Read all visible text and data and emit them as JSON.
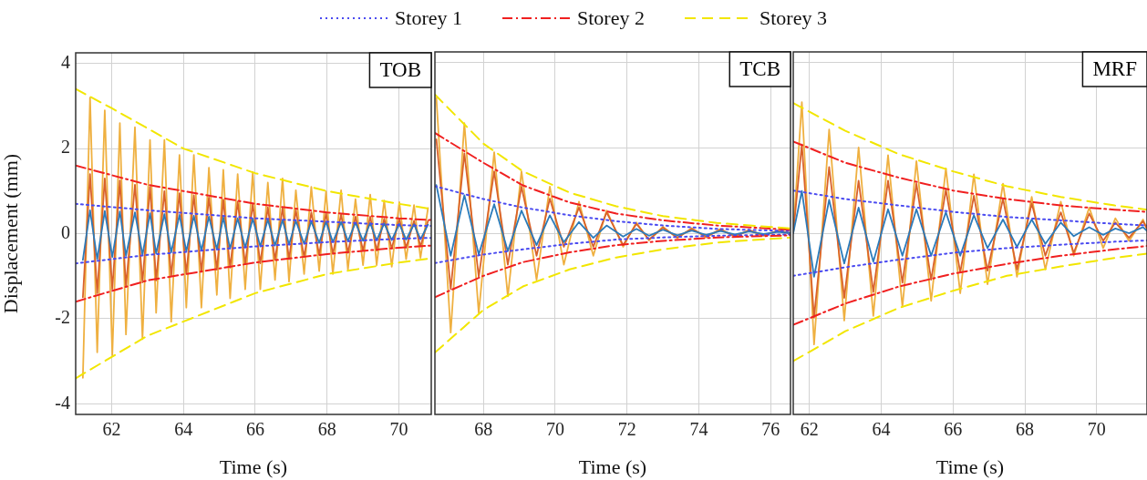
{
  "chart_data": [
    {
      "type": "line",
      "title": "TOB",
      "xlabel": "Time (s)",
      "ylabel": "Displacement (mm)",
      "xlim": [
        61,
        70.9
      ],
      "xticks": [
        62,
        64,
        66,
        68,
        70
      ],
      "ylim": [
        -4.25,
        4.25
      ],
      "yticks": [
        -4,
        -2,
        0,
        2,
        4
      ],
      "grid": true,
      "legend": "top",
      "marker": "none",
      "x": [
        61.2,
        61.4,
        61.6,
        61.81,
        62.02,
        62.23,
        62.4,
        62.65,
        62.86,
        63.07,
        63.24,
        63.47,
        63.66,
        63.89,
        64.08,
        64.29,
        64.5,
        64.71,
        64.93,
        65.11,
        65.3,
        65.51,
        65.72,
        65.93,
        66.14,
        66.35,
        66.55,
        66.76,
        66.94,
        67.13,
        67.36,
        67.56,
        67.78,
        67.97,
        68.16,
        68.39,
        68.58,
        68.79,
        69.0,
        69.2,
        69.38,
        69.59,
        69.8,
        70.01,
        70.2,
        70.42,
        70.6,
        70.81
      ],
      "series": [
        {
          "color": "#efb040",
          "values": [
            -3.39,
            3.2,
            -2.79,
            2.9,
            -2.86,
            2.6,
            -2.37,
            2.5,
            -2.48,
            2.2,
            -1.86,
            2.2,
            -2.07,
            1.85,
            -1.74,
            1.85,
            -1.74,
            1.55,
            -1.44,
            1.5,
            -1.52,
            1.4,
            -1.31,
            1.45,
            -1.31,
            1.2,
            -1.09,
            1.3,
            -1.13,
            1.02,
            -0.95,
            1.1,
            -0.88,
            0.99,
            -0.95,
            1.02,
            -0.85,
            0.81,
            -0.74,
            0.92,
            -0.74,
            0.78,
            -0.78,
            0.74,
            -0.6,
            0.67,
            -0.57,
            0.6
          ]
        },
        {
          "color": "#d9622b",
          "values": [
            -1.5,
            1.4,
            -1.4,
            1.3,
            -1.3,
            1.25,
            -1.25,
            1.15,
            -1.15,
            1.1,
            -1.1,
            1.0,
            -1.0,
            0.95,
            -0.95,
            0.9,
            -0.9,
            0.85,
            -0.85,
            0.8,
            -0.8,
            0.75,
            -0.72,
            0.7,
            -0.7,
            0.62,
            -0.62,
            0.6,
            -0.6,
            0.55,
            -0.55,
            0.5,
            -0.5,
            0.48,
            -0.48,
            0.45,
            -0.45,
            0.4,
            -0.4,
            0.4,
            -0.4,
            0.35,
            -0.35,
            0.35,
            -0.33,
            0.3,
            -0.3,
            0.3
          ]
        },
        {
          "color": "#2b7bba",
          "values": [
            -0.62,
            0.55,
            -0.6,
            0.53,
            -0.55,
            0.52,
            -0.52,
            0.5,
            -0.5,
            0.48,
            -0.47,
            0.46,
            -0.44,
            0.44,
            -0.42,
            0.42,
            -0.4,
            0.4,
            -0.37,
            0.38,
            -0.35,
            0.36,
            -0.33,
            0.35,
            -0.3,
            0.33,
            -0.28,
            0.32,
            -0.26,
            0.3,
            -0.24,
            0.29,
            -0.22,
            0.28,
            -0.2,
            0.27,
            -0.18,
            0.26,
            -0.17,
            0.25,
            -0.16,
            0.24,
            -0.15,
            0.23,
            -0.14,
            0.22,
            -0.13,
            0.21
          ]
        },
        {
          "name": "Storey 1",
          "color": "#4a4af0",
          "line_style": "dotted",
          "x": [
            61,
            63,
            66,
            68,
            70,
            70.9
          ],
          "values": [
            0.7,
            0.55,
            0.36,
            0.28,
            0.2,
            0.18
          ]
        },
        {
          "color": "#4a4af0",
          "line_style": "dotted",
          "x": [
            61,
            63,
            66,
            68,
            70,
            70.9
          ],
          "values": [
            -0.7,
            -0.5,
            -0.3,
            -0.2,
            -0.12,
            -0.1
          ]
        },
        {
          "name": "Storey 2",
          "color": "#f02020",
          "line_style": "dashdot",
          "x": [
            61,
            63,
            66,
            68,
            70,
            70.9
          ],
          "values": [
            1.6,
            1.15,
            0.7,
            0.5,
            0.36,
            0.32
          ]
        },
        {
          "color": "#f02020",
          "line_style": "dashdot",
          "x": [
            61,
            63,
            66,
            68,
            70,
            70.9
          ],
          "values": [
            -1.6,
            -1.1,
            -0.68,
            -0.48,
            -0.33,
            -0.28
          ]
        },
        {
          "name": "Storey 3",
          "color": "#f2e600",
          "line_style": "dashed",
          "x": [
            61,
            62,
            64,
            66,
            68,
            70,
            70.9
          ],
          "values": [
            3.4,
            2.95,
            2.0,
            1.42,
            1.0,
            0.7,
            0.58
          ]
        },
        {
          "color": "#f2e600",
          "line_style": "dashed",
          "x": [
            61,
            63,
            66,
            68,
            70,
            70.9
          ],
          "values": [
            -3.4,
            -2.4,
            -1.4,
            -0.95,
            -0.68,
            -0.58
          ]
        }
      ]
    },
    {
      "type": "line",
      "title": "TCB",
      "xlabel": "Time (s)",
      "xlim": [
        66.65,
        76.55
      ],
      "xticks": [
        68,
        70,
        72,
        74,
        76
      ],
      "ylim": [
        -4.25,
        4.25
      ],
      "yticks": [
        -4,
        -2,
        0,
        2,
        4
      ],
      "grid": true,
      "tick_labels": "x",
      "marker": "none",
      "x": [
        66.69,
        67.09,
        67.47,
        67.87,
        68.3,
        68.68,
        69.06,
        69.48,
        69.85,
        70.24,
        70.66,
        71.06,
        71.43,
        71.89,
        72.26,
        72.61,
        73.0,
        73.4,
        73.8,
        74.2,
        74.6,
        75.0,
        75.4,
        75.8,
        76.2,
        76.55
      ],
      "series": [
        {
          "color": "#efb040",
          "values": [
            3.17,
            -2.33,
            2.58,
            -1.87,
            1.9,
            -1.48,
            1.45,
            -1.09,
            1.09,
            -0.74,
            0.74,
            -0.53,
            0.53,
            -0.32,
            0.25,
            -0.17,
            0.15,
            -0.12,
            0.12,
            -0.1,
            0.1,
            -0.08,
            0.08,
            -0.06,
            0.06,
            0
          ]
        },
        {
          "color": "#d9622b",
          "values": [
            2.2,
            -1.31,
            1.87,
            -1.02,
            1.45,
            -0.74,
            1.09,
            -0.53,
            0.81,
            -0.32,
            0.6,
            -0.32,
            0.49,
            -0.28,
            0.22,
            -0.15,
            0.13,
            -0.1,
            0.1,
            -0.08,
            0.08,
            -0.07,
            0.06,
            -0.05,
            0.05,
            0
          ]
        },
        {
          "color": "#2b7bba",
          "values": [
            1.13,
            -0.53,
            0.89,
            -0.5,
            0.68,
            -0.42,
            0.53,
            -0.28,
            0.42,
            -0.21,
            0.26,
            -0.11,
            0.18,
            -0.08,
            0.1,
            -0.06,
            0.08,
            -0.05,
            0.06,
            -0.04,
            0.05,
            -0.03,
            0.04,
            -0.02,
            0.03,
            0
          ]
        },
        {
          "color": "#4a4af0",
          "line_style": "dotted",
          "x": [
            66.65,
            68,
            69.1,
            70.4,
            71.7,
            73,
            74.5,
            76.55
          ],
          "values": [
            1.1,
            0.8,
            0.6,
            0.42,
            0.28,
            0.18,
            0.1,
            0.05
          ]
        },
        {
          "color": "#4a4af0",
          "line_style": "dotted",
          "x": [
            66.65,
            68,
            69.1,
            70.4,
            71.7,
            73,
            74.5,
            76.55
          ],
          "values": [
            -0.7,
            -0.5,
            -0.38,
            -0.25,
            -0.15,
            -0.1,
            -0.06,
            -0.03
          ]
        },
        {
          "color": "#f02020",
          "line_style": "dashdot",
          "x": [
            66.65,
            68,
            69.1,
            70.4,
            71.7,
            73,
            74.5,
            76.55
          ],
          "values": [
            2.35,
            1.65,
            1.12,
            0.72,
            0.46,
            0.3,
            0.18,
            0.08
          ]
        },
        {
          "color": "#f02020",
          "line_style": "dashdot",
          "x": [
            66.65,
            68,
            69.1,
            70.4,
            71.7,
            73,
            74.5,
            76.55
          ],
          "values": [
            -1.5,
            -1.0,
            -0.68,
            -0.45,
            -0.28,
            -0.18,
            -0.1,
            -0.05
          ]
        },
        {
          "color": "#f2e600",
          "line_style": "dashed",
          "x": [
            66.65,
            68,
            69.1,
            70.4,
            71.7,
            73,
            74.5,
            76.55
          ],
          "values": [
            3.25,
            2.1,
            1.45,
            0.95,
            0.63,
            0.4,
            0.24,
            0.11
          ]
        },
        {
          "color": "#f2e600",
          "line_style": "dashed",
          "x": [
            66.65,
            68,
            69.1,
            70.4,
            71.7,
            73,
            74.5,
            76.55
          ],
          "values": [
            -2.8,
            -1.8,
            -1.25,
            -0.85,
            -0.57,
            -0.38,
            -0.22,
            -0.1
          ]
        }
      ]
    },
    {
      "type": "line",
      "title": "MRF",
      "xlabel": "Time (s)",
      "xlim": [
        61.55,
        71.4
      ],
      "xticks": [
        62,
        64,
        66,
        68,
        70
      ],
      "ylim": [
        -4.25,
        4.25
      ],
      "yticks": [
        -4,
        -2,
        0,
        2,
        4
      ],
      "grid": true,
      "tick_labels": "x",
      "marker": "none",
      "x": [
        61.55,
        61.79,
        62.13,
        62.55,
        62.97,
        63.37,
        63.78,
        64.19,
        64.59,
        64.98,
        65.39,
        65.8,
        66.2,
        66.58,
        66.96,
        67.39,
        67.78,
        68.19,
        68.57,
        69.0,
        69.36,
        69.79,
        70.18,
        70.52,
        70.9,
        71.29,
        71.4
      ],
      "series": [
        {
          "color": "#efb040",
          "values": [
            0,
            3.07,
            -2.61,
            2.43,
            -2.05,
            2.01,
            -1.94,
            1.83,
            -1.73,
            1.69,
            -1.59,
            1.52,
            -1.41,
            1.38,
            -1.2,
            1.16,
            -1.02,
            0.85,
            -0.85,
            0.74,
            -0.53,
            0.6,
            -0.35,
            0.35,
            -0.18,
            0.32,
            0.1
          ]
        },
        {
          "color": "#d9622b",
          "values": [
            0,
            2.08,
            -1.98,
            1.55,
            -1.52,
            1.23,
            -1.38,
            1.23,
            -1.16,
            1.16,
            -1.09,
            1.02,
            -0.92,
            0.88,
            -0.88,
            0.81,
            -0.85,
            0.7,
            -0.53,
            0.49,
            -0.46,
            0.46,
            -0.18,
            0.25,
            -0.11,
            0.28,
            0.1
          ]
        },
        {
          "color": "#2b7bba",
          "values": [
            0,
            0.99,
            -1.02,
            0.78,
            -0.71,
            0.6,
            -0.67,
            0.56,
            -0.53,
            0.56,
            -0.53,
            0.49,
            -0.53,
            0.42,
            -0.35,
            0.32,
            -0.32,
            0.32,
            -0.25,
            0.25,
            -0.07,
            0.14,
            -0.04,
            0.11,
            0,
            0.14,
            0.05
          ]
        },
        {
          "color": "#4a4af0",
          "line_style": "dotted",
          "x": [
            61.55,
            63,
            64.5,
            66,
            67.5,
            69,
            70.5,
            71.4
          ],
          "values": [
            1.0,
            0.8,
            0.65,
            0.5,
            0.38,
            0.3,
            0.22,
            0.18
          ]
        },
        {
          "color": "#4a4af0",
          "line_style": "dotted",
          "x": [
            61.55,
            63,
            64.5,
            66,
            67.5,
            69,
            70.5,
            71.4
          ],
          "values": [
            -1.0,
            -0.8,
            -0.62,
            -0.46,
            -0.35,
            -0.27,
            -0.2,
            -0.17
          ]
        },
        {
          "color": "#f02020",
          "line_style": "dashdot",
          "x": [
            61.55,
            63,
            64.5,
            66,
            67.5,
            69,
            70.5,
            71.4
          ],
          "values": [
            2.15,
            1.65,
            1.3,
            1.0,
            0.8,
            0.65,
            0.55,
            0.5
          ]
        },
        {
          "color": "#f02020",
          "line_style": "dashdot",
          "x": [
            61.55,
            63,
            64.5,
            66,
            67.5,
            69,
            70.5,
            71.4
          ],
          "values": [
            -2.15,
            -1.65,
            -1.25,
            -0.95,
            -0.72,
            -0.53,
            -0.38,
            -0.3
          ]
        },
        {
          "color": "#f2e600",
          "line_style": "dashed",
          "x": [
            61.55,
            63,
            64.5,
            66,
            67.5,
            69,
            70.5,
            71.4
          ],
          "values": [
            3.05,
            2.4,
            1.85,
            1.45,
            1.1,
            0.85,
            0.65,
            0.55
          ]
        },
        {
          "color": "#f2e600",
          "line_style": "dashed",
          "x": [
            61.55,
            63,
            64.5,
            66,
            67.5,
            69,
            70.5,
            71.4
          ],
          "values": [
            -3.0,
            -2.3,
            -1.75,
            -1.35,
            -1.0,
            -0.78,
            -0.58,
            -0.48
          ]
        }
      ]
    }
  ]
}
